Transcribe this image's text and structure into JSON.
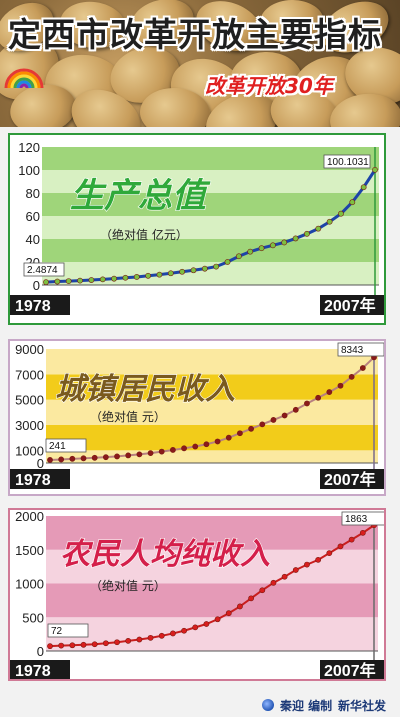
{
  "banner": {
    "title": "定西市改革开放主要指标",
    "subtitle": "改革开放30年"
  },
  "footer": {
    "credit": "秦迎 编制",
    "agency": "新华社发"
  },
  "colors": {
    "gdp_band_dark": "#9fd57a",
    "gdp_band_light": "#d8f0c2",
    "gdp_title": "#2fa93a",
    "gdp_line": "#1d44a8",
    "urban_band_dark": "#f2cc1a",
    "urban_band_light": "#fbe9a0",
    "urban_title": "#7a5a1e",
    "urban_line": "#b88080",
    "rural_band_dark": "#e59ab7",
    "rural_band_light": "#f5d3df",
    "rural_title": "#d41f4a",
    "rural_line": "#c81e1e",
    "marker": "#7b1a12"
  },
  "chart_data": [
    {
      "type": "line",
      "title": "生产总值",
      "subtitle": "（绝对值 亿元）",
      "x": [
        "1978",
        "1979",
        "1980",
        "1981",
        "1982",
        "1983",
        "1984",
        "1985",
        "1986",
        "1987",
        "1988",
        "1989",
        "1990",
        "1991",
        "1992",
        "1993",
        "1994",
        "1995",
        "1996",
        "1997",
        "1998",
        "1999",
        "2000",
        "2001",
        "2002",
        "2003",
        "2004",
        "2005",
        "2006",
        "2007"
      ],
      "values": [
        2.4874,
        3.0,
        3.4,
        3.8,
        4.3,
        4.9,
        5.5,
        6.3,
        7.0,
        8.0,
        9.0,
        10.2,
        11.5,
        12.8,
        14.2,
        16.0,
        20.0,
        25.0,
        29.0,
        32.0,
        34.5,
        37.0,
        40.5,
        44.5,
        49.0,
        55.0,
        62.0,
        72.0,
        85.0,
        100.1031
      ],
      "ylim": [
        0,
        120
      ],
      "yticks": [
        "0",
        "20",
        "40",
        "60",
        "80",
        "100",
        "120"
      ],
      "start_label": "1978",
      "end_label": "2007年",
      "first_value_label": "2.4874",
      "last_value_label": "100.1031"
    },
    {
      "type": "line",
      "title": "城镇居民收入",
      "subtitle": "（绝对值 元）",
      "x": [
        "1978",
        "1979",
        "1980",
        "1981",
        "1982",
        "1983",
        "1984",
        "1985",
        "1986",
        "1987",
        "1988",
        "1989",
        "1990",
        "1991",
        "1992",
        "1993",
        "1994",
        "1995",
        "1996",
        "1997",
        "1998",
        "1999",
        "2000",
        "2001",
        "2002",
        "2003",
        "2004",
        "2005",
        "2006",
        "2007"
      ],
      "values": [
        241,
        280,
        330,
        370,
        410,
        460,
        520,
        600,
        680,
        780,
        900,
        1030,
        1160,
        1300,
        1480,
        1700,
        2000,
        2350,
        2700,
        3050,
        3400,
        3750,
        4200,
        4700,
        5150,
        5600,
        6100,
        6800,
        7500,
        8343
      ],
      "ylim": [
        0,
        9000
      ],
      "yticks": [
        "0",
        "1000",
        "3000",
        "5000",
        "7000",
        "9000"
      ],
      "start_label": "1978",
      "end_label": "2007年",
      "first_value_label": "241",
      "last_value_label": "8343"
    },
    {
      "type": "line",
      "title": "农民人均纯收入",
      "subtitle": "（绝对值 元）",
      "x": [
        "1978",
        "1979",
        "1980",
        "1981",
        "1982",
        "1983",
        "1984",
        "1985",
        "1986",
        "1987",
        "1988",
        "1989",
        "1990",
        "1991",
        "1992",
        "1993",
        "1994",
        "1995",
        "1996",
        "1997",
        "1998",
        "1999",
        "2000",
        "2001",
        "2002",
        "2003",
        "2004",
        "2005",
        "2006",
        "2007"
      ],
      "values": [
        72,
        80,
        85,
        92,
        100,
        115,
        130,
        150,
        170,
        195,
        225,
        260,
        300,
        350,
        400,
        470,
        560,
        660,
        780,
        900,
        1010,
        1100,
        1200,
        1280,
        1350,
        1450,
        1550,
        1650,
        1750,
        1863
      ],
      "ylim": [
        0,
        2000
      ],
      "yticks": [
        "0",
        "500",
        "1000",
        "1500",
        "2000"
      ],
      "start_label": "1978",
      "end_label": "2007年",
      "first_value_label": "72",
      "last_value_label": "1863"
    }
  ]
}
